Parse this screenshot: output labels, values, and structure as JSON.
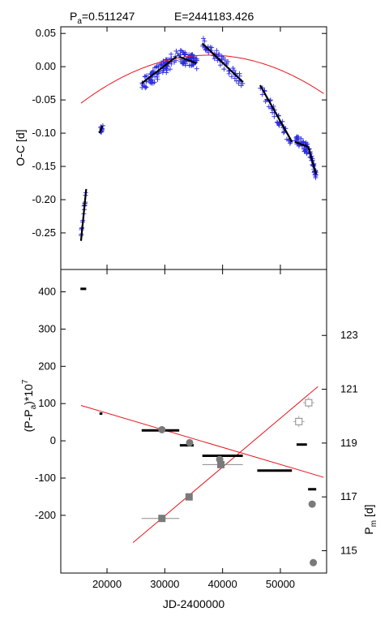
{
  "header": {
    "period_text": "P",
    "period_sub": "a",
    "period_value": "=0.511247",
    "epoch_text": "E=2441183.426"
  },
  "chart_data": [
    {
      "type": "scatter",
      "panel": "top",
      "xlabel": "JD-2400000",
      "ylabel": "O-C [d]",
      "xlim": [
        12000,
        58000
      ],
      "ylim": [
        -0.305,
        0.06
      ],
      "yticks": [
        0.05,
        0.0,
        -0.05,
        -0.1,
        -0.15,
        -0.2,
        -0.25
      ],
      "ytick_labels": [
        "0.05",
        "0.00",
        "-0.05",
        "-0.10",
        "-0.15",
        "-0.20",
        "-0.25"
      ],
      "marker_color": "#2a2ae0",
      "fit_color": "#e8141c",
      "parabola": {
        "coeffs": [
          0.0163,
          7.83e-07,
          -1.47e-10
        ],
        "x0": 35000,
        "xrange": [
          15500,
          57500
        ]
      },
      "segments": [
        {
          "x": [
            15500,
            16400
          ],
          "y": [
            -0.262,
            -0.184
          ]
        },
        {
          "x": [
            18700,
            19200
          ],
          "y": [
            -0.1,
            -0.089
          ]
        },
        {
          "x": [
            26000,
            32000
          ],
          "y": [
            -0.025,
            0.015
          ]
        },
        {
          "x": [
            32500,
            35500
          ],
          "y": [
            0.015,
            0.005
          ]
        },
        {
          "x": [
            36500,
            43500
          ],
          "y": [
            0.035,
            -0.023
          ]
        },
        {
          "x": [
            46500,
            52000
          ],
          "y": [
            -0.028,
            -0.113
          ]
        },
        {
          "x": [
            52500,
            54700
          ],
          "y": [
            -0.113,
            -0.12
          ]
        },
        {
          "x": [
            54800,
            56200
          ],
          "y": [
            -0.12,
            -0.162
          ]
        }
      ],
      "point_clusters": [
        {
          "x": [
            15400,
            16400
          ],
          "y": [
            -0.262,
            -0.187
          ],
          "n": 18,
          "spread": 0.005
        },
        {
          "x": [
            18600,
            19300
          ],
          "y": [
            -0.102,
            -0.088
          ],
          "n": 10,
          "spread": 0.006
        },
        {
          "x": [
            26000,
            32400
          ],
          "y": [
            -0.028,
            0.017
          ],
          "n": 80,
          "spread": 0.011
        },
        {
          "x": [
            32600,
            35600
          ],
          "y": [
            0.015,
            0.006
          ],
          "n": 60,
          "spread": 0.01
        },
        {
          "x": [
            36500,
            43500
          ],
          "y": [
            0.038,
            -0.024
          ],
          "n": 55,
          "spread": 0.009
        },
        {
          "x": [
            46500,
            52000
          ],
          "y": [
            -0.03,
            -0.115
          ],
          "n": 40,
          "spread": 0.008
        },
        {
          "x": [
            52500,
            54700
          ],
          "y": [
            -0.108,
            -0.124
          ],
          "n": 40,
          "spread": 0.008
        },
        {
          "x": [
            54800,
            56200
          ],
          "y": [
            -0.12,
            -0.165
          ],
          "n": 35,
          "spread": 0.006
        }
      ]
    },
    {
      "type": "line",
      "panel": "bottom",
      "xlabel": "JD-2400000",
      "ylabel_main": "(P-P",
      "ylabel_sub": "a",
      "ylabel_mid": ")*10",
      "ylabel_sup": "7",
      "xlim": [
        12000,
        58000
      ],
      "ylim": [
        -355,
        460
      ],
      "xticks": [
        20000,
        30000,
        40000,
        50000
      ],
      "xtick_labels": [
        "20000",
        "30000",
        "40000",
        "50000"
      ],
      "yticks": [
        400,
        300,
        200,
        100,
        0,
        -100,
        -200
      ],
      "ytick_labels": [
        "400",
        "300",
        "200",
        "100",
        "0",
        "-100",
        "-200"
      ],
      "period_bars": [
        {
          "x": [
            15400,
            16400
          ],
          "y": 408
        },
        {
          "x": [
            18700,
            19200
          ],
          "y": 73
        },
        {
          "x": [
            26000,
            32500
          ],
          "y": 28
        },
        {
          "x": [
            32600,
            35000
          ],
          "y": -12
        },
        {
          "x": [
            36500,
            43500
          ],
          "y": -40
        },
        {
          "x": [
            46000,
            52000
          ],
          "y": -80
        },
        {
          "x": [
            52800,
            54600
          ],
          "y": -10
        },
        {
          "x": [
            54800,
            56200
          ],
          "y": -130
        }
      ],
      "trend": {
        "x": [
          15500,
          57500
        ],
        "y": [
          95,
          -98
        ]
      },
      "circles": [
        {
          "x": 29500,
          "y": 30
        },
        {
          "x": 34300,
          "y": -5
        },
        {
          "x": 39500,
          "y": -50
        },
        {
          "x": 55500,
          "y": -170
        },
        {
          "x": 55700,
          "y": -327
        }
      ],
      "color_fit": "#e8141c",
      "color_marker": "#7a7a7a"
    },
    {
      "type": "scatter",
      "panel": "bottom-right-axis",
      "ylabel_main": "P",
      "ylabel_sub": "m",
      "ylabel_unit": " [d]",
      "ylim": [
        114.17,
        125.45
      ],
      "yticks": [
        123,
        121,
        119,
        117,
        115
      ],
      "ytick_labels": [
        "123",
        "121",
        "119",
        "117",
        "115"
      ],
      "squares": [
        {
          "x": 29500,
          "y": 116.2,
          "xerr": [
            26000,
            32500
          ]
        },
        {
          "x": 34200,
          "y": 117.0
        },
        {
          "x": 39700,
          "y": 118.2,
          "xerr": [
            36500,
            43500
          ]
        }
      ],
      "open_squares": [
        {
          "x": 53200,
          "y": 119.8
        },
        {
          "x": 54900,
          "y": 120.5
        }
      ],
      "trend": {
        "x": [
          24500,
          56500
        ],
        "y": [
          115.3,
          121.1
        ]
      }
    }
  ]
}
